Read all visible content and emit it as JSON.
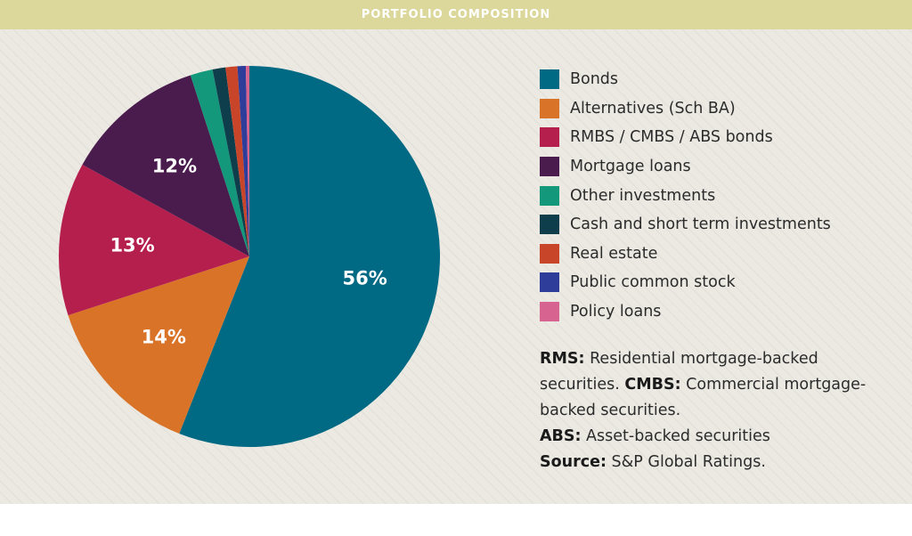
{
  "header": {
    "title": "PORTFOLIO COMPOSITION"
  },
  "chart_data": {
    "type": "pie",
    "title": "PORTFOLIO COMPOSITION",
    "legend_position": "right",
    "slices": [
      {
        "label": "Bonds",
        "value": 56,
        "color": "#006983",
        "data_label": "56%"
      },
      {
        "label": "Alternatives (Sch BA)",
        "value": 14,
        "color": "#d97328",
        "data_label": "14%"
      },
      {
        "label": "RMBS / CMBS / ABS bonds",
        "value": 13,
        "color": "#b51f4e",
        "data_label": "13%"
      },
      {
        "label": "Mortgage loans",
        "value": 12,
        "color": "#4a1c4d",
        "data_label": "12%"
      },
      {
        "label": "Other investments",
        "value": 1.9,
        "color": "#13987b",
        "data_label": ""
      },
      {
        "label": "Cash and short term investments",
        "value": 1.1,
        "color": "#0e3e4c",
        "data_label": ""
      },
      {
        "label": "Real estate",
        "value": 1.0,
        "color": "#c9452a",
        "data_label": ""
      },
      {
        "label": "Public common stock",
        "value": 0.7,
        "color": "#2e3d9a",
        "data_label": ""
      },
      {
        "label": "Policy loans",
        "value": 0.3,
        "color": "#d76490",
        "data_label": ""
      }
    ]
  },
  "notes": {
    "rms_term": "RMS:",
    "rms_text": " Residential mortgage-backed securities. ",
    "cmbs_term": "CMBS:",
    "cmbs_text": " Commercial mortgage-backed securities.",
    "abs_term": "ABS:",
    "abs_text": " Asset-backed securities",
    "source_term": "Source:",
    "source_text": " S&P Global Ratings."
  }
}
